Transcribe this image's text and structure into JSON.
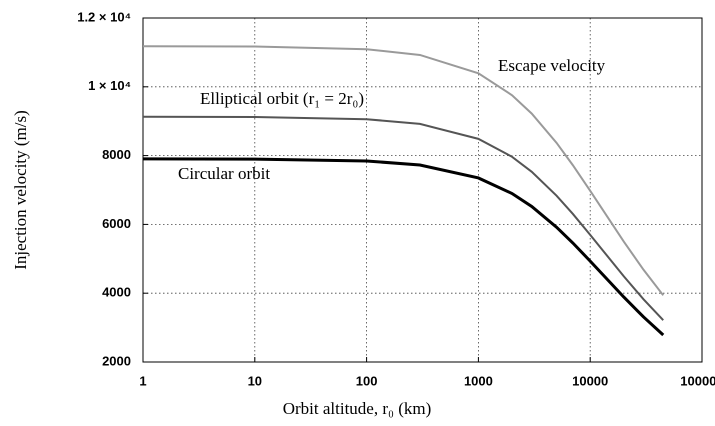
{
  "chart_data": {
    "type": "line",
    "xlabel": "Orbit altitude, r₀ (km)",
    "ylabel": "Injection velocity (m/s)",
    "x": [
      1,
      10,
      100,
      300,
      1000,
      2000,
      3000,
      5000,
      7000,
      10000,
      20000,
      30000,
      45000
    ],
    "series": [
      {
        "name": "Escape velocity",
        "color": "#9a9a9a",
        "values": [
          11180,
          11171,
          11093,
          10926,
          10394,
          9755,
          9221,
          8371,
          7720,
          6976,
          5497,
          4681,
          3939
        ]
      },
      {
        "name": "Elliptical orbit (r₁ = 2r₀)",
        "color": "#555555",
        "values": [
          9128,
          9121,
          9058,
          8921,
          8487,
          7965,
          7529,
          6835,
          6304,
          5696,
          4488,
          3822,
          3216
        ]
      },
      {
        "name": "Circular orbit",
        "color": "#000000",
        "values": [
          7905,
          7899,
          7844,
          7726,
          7350,
          6898,
          6520,
          5919,
          5459,
          4933,
          3887,
          3310,
          2785
        ]
      }
    ],
    "xscale": "log",
    "xlim": [
      1,
      100000
    ],
    "xticks": [
      1,
      10,
      100,
      1000,
      10000,
      100000
    ],
    "ylim": [
      2000,
      12000
    ],
    "yticks": [
      2000,
      4000,
      6000,
      8000,
      {
        "value": 10000,
        "label": "1 × 10⁴"
      },
      {
        "value": 12000,
        "label": "1.2 × 10⁴"
      }
    ],
    "grid": true
  }
}
